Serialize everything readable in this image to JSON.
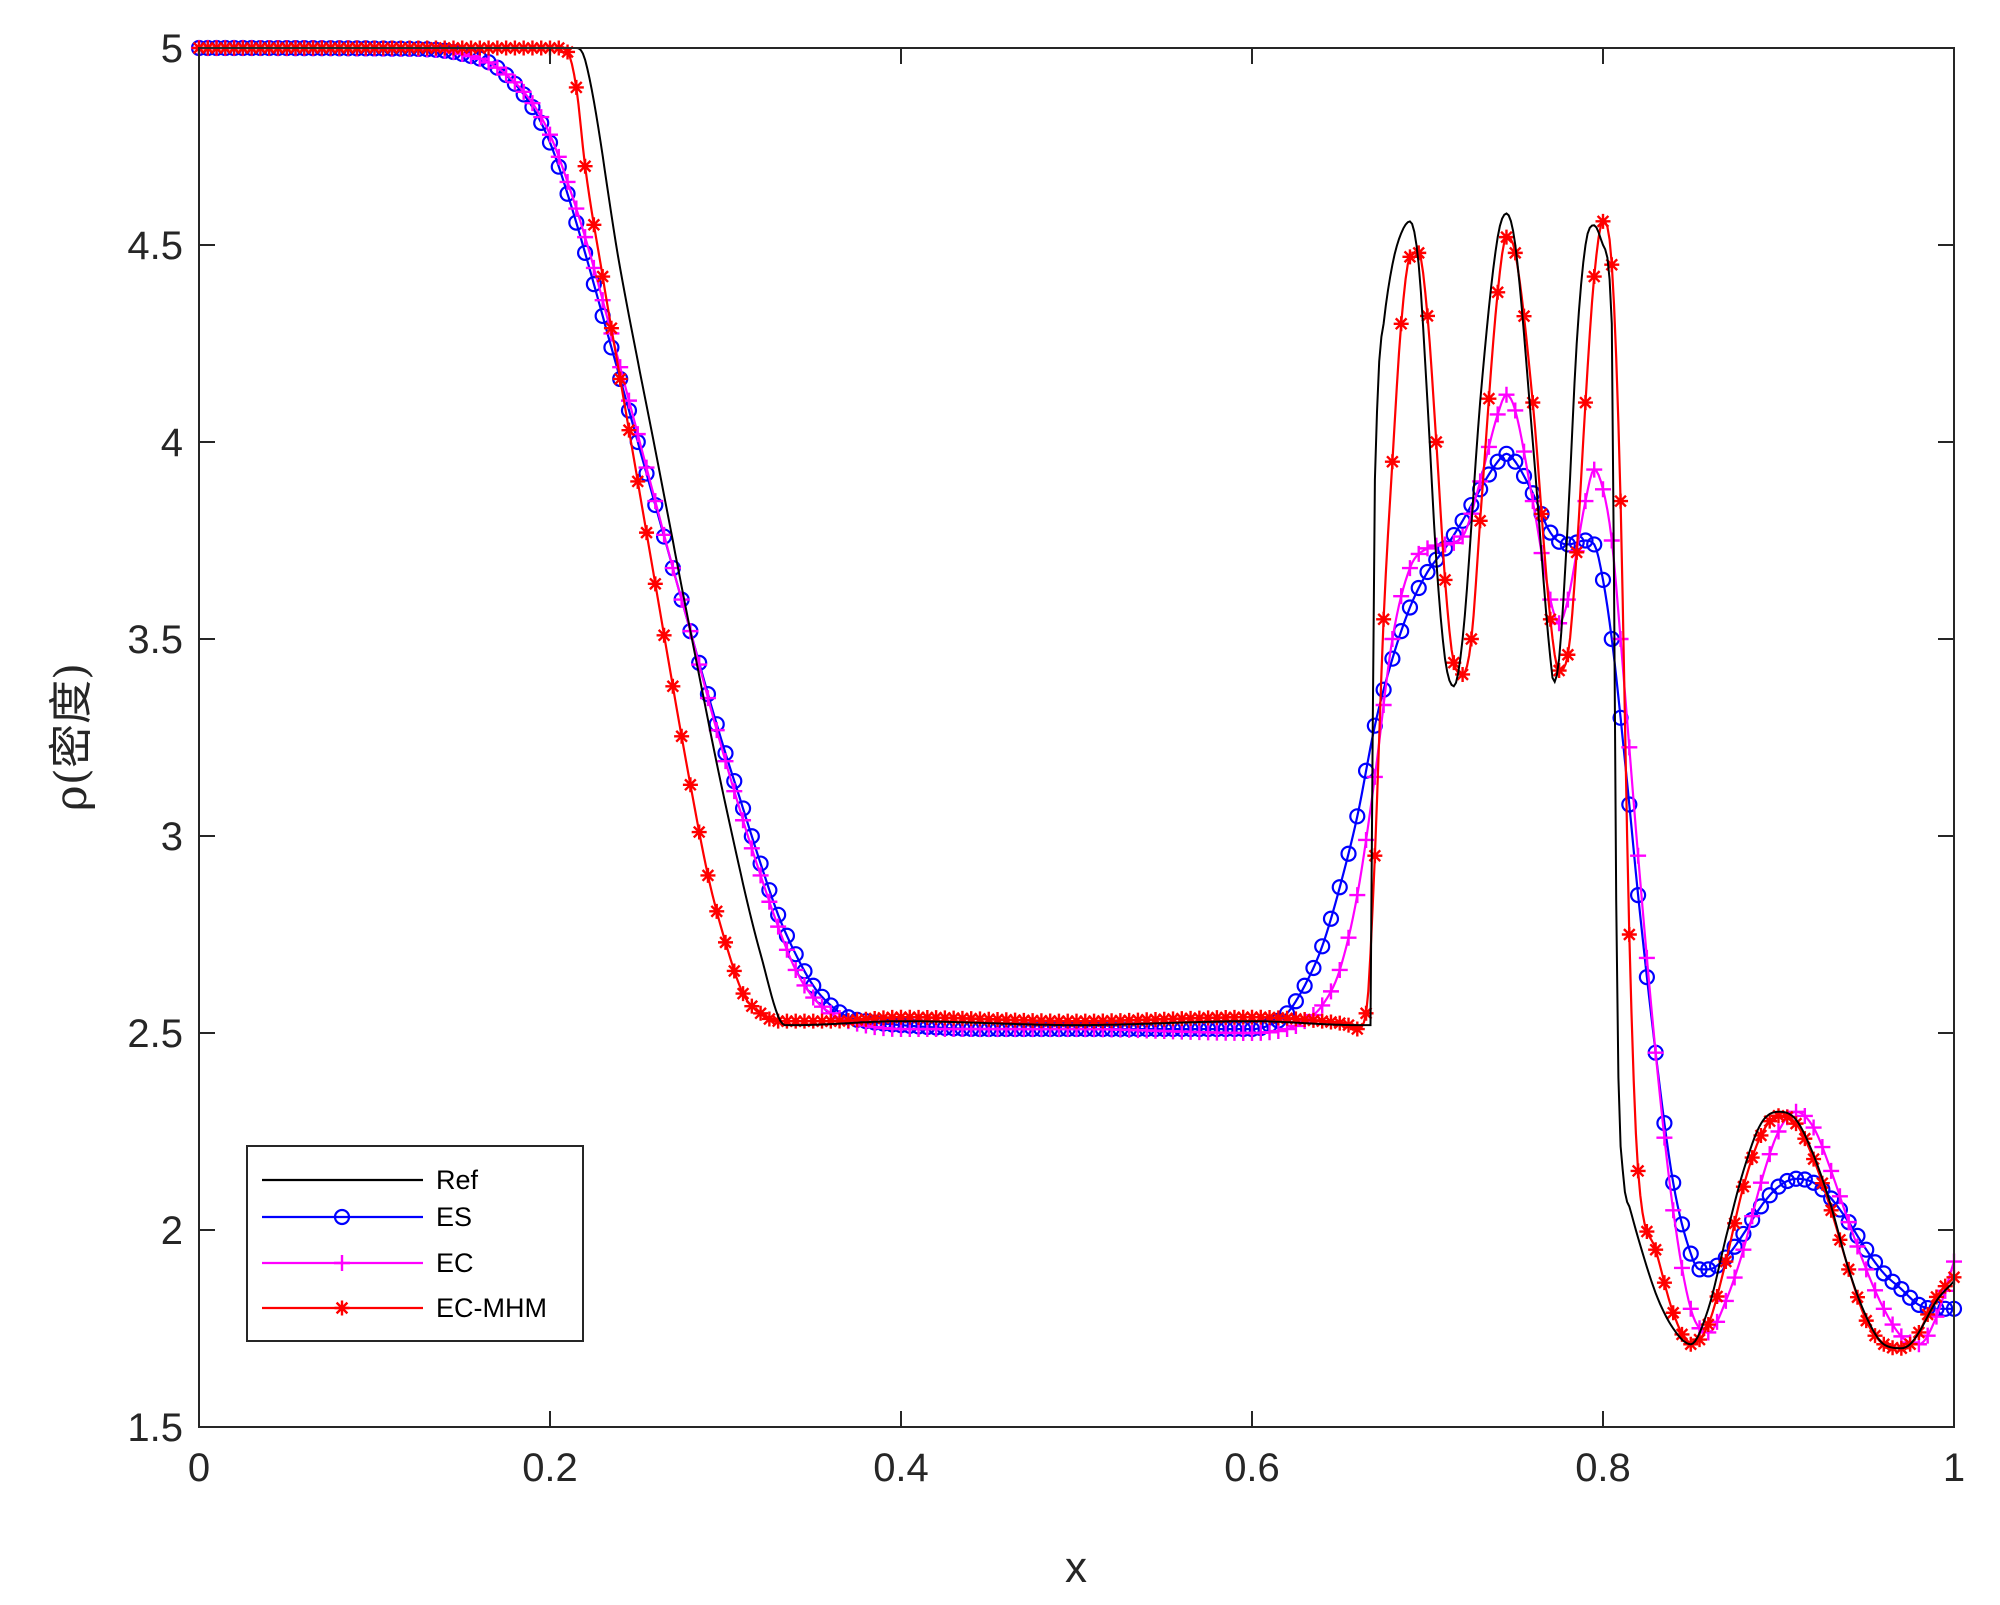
{
  "chart_data": {
    "type": "line",
    "title": "",
    "xlabel": "x",
    "ylabel": "ρ(密度)",
    "xlim": [
      0,
      1
    ],
    "ylim": [
      1.5,
      5
    ],
    "xticks": [
      0,
      0.2,
      0.4,
      0.6,
      0.8,
      1
    ],
    "xtick_labels": [
      "0",
      "0.2",
      "0.4",
      "0.6",
      "0.8",
      "1"
    ],
    "yticks": [
      1.5,
      2,
      2.5,
      3,
      3.5,
      4,
      4.5,
      5
    ],
    "ytick_labels": [
      "1.5",
      "2",
      "2.5",
      "3",
      "3.5",
      "4",
      "4.5",
      "5"
    ],
    "grid": false,
    "legend_position": "bottom-left",
    "series": [
      {
        "name": "Ref",
        "color": "#000000",
        "marker": "none",
        "x": [
          0,
          0.21,
          0.215,
          0.22,
          0.24,
          0.26,
          0.28,
          0.3,
          0.32,
          0.334,
          0.34,
          0.4,
          0.5,
          0.6,
          0.66,
          0.668,
          0.669,
          0.672,
          0.675,
          0.68,
          0.685,
          0.69,
          0.695,
          0.7,
          0.705,
          0.71,
          0.715,
          0.72,
          0.73,
          0.74,
          0.745,
          0.75,
          0.76,
          0.77,
          0.772,
          0.775,
          0.78,
          0.785,
          0.79,
          0.795,
          0.8,
          0.805,
          0.806,
          0.808,
          0.812,
          0.815,
          0.82,
          0.83,
          0.84,
          0.85,
          0.86,
          0.87,
          0.88,
          0.89,
          0.9,
          0.91,
          0.92,
          0.93,
          0.94,
          0.95,
          0.96,
          0.97,
          0.975,
          0.98,
          0.99,
          1.0
        ],
        "y": [
          5,
          5,
          5,
          4.97,
          4.44,
          3.98,
          3.52,
          3.08,
          2.7,
          2.52,
          2.52,
          2.53,
          2.52,
          2.53,
          2.52,
          2.52,
          3.5,
          4.15,
          4.3,
          4.45,
          4.53,
          4.56,
          4.45,
          4.1,
          3.7,
          3.45,
          3.38,
          3.5,
          4.1,
          4.52,
          4.58,
          4.5,
          4.0,
          3.45,
          3.39,
          3.45,
          3.8,
          4.25,
          4.5,
          4.55,
          4.5,
          4.3,
          3.8,
          2.6,
          2.12,
          2.06,
          1.98,
          1.84,
          1.75,
          1.71,
          1.8,
          1.98,
          2.15,
          2.27,
          2.3,
          2.28,
          2.19,
          2.06,
          1.9,
          1.78,
          1.71,
          1.7,
          1.71,
          1.74,
          1.82,
          1.87
        ]
      },
      {
        "name": "ES",
        "color": "#0000ff",
        "marker": "circle",
        "x": [
          0,
          0.12,
          0.15,
          0.17,
          0.19,
          0.2,
          0.21,
          0.22,
          0.23,
          0.24,
          0.25,
          0.26,
          0.27,
          0.28,
          0.29,
          0.3,
          0.31,
          0.32,
          0.33,
          0.34,
          0.35,
          0.36,
          0.37,
          0.38,
          0.4,
          0.45,
          0.5,
          0.55,
          0.6,
          0.61,
          0.62,
          0.63,
          0.64,
          0.65,
          0.66,
          0.67,
          0.68,
          0.69,
          0.7,
          0.71,
          0.72,
          0.73,
          0.74,
          0.745,
          0.75,
          0.76,
          0.77,
          0.78,
          0.79,
          0.795,
          0.8,
          0.805,
          0.81,
          0.815,
          0.82,
          0.83,
          0.84,
          0.85,
          0.855,
          0.86,
          0.87,
          0.88,
          0.89,
          0.9,
          0.91,
          0.92,
          0.93,
          0.94,
          0.95,
          0.96,
          0.97,
          0.98,
          0.99,
          1.0
        ],
        "y": [
          5,
          4.998,
          4.985,
          4.95,
          4.85,
          4.76,
          4.63,
          4.48,
          4.32,
          4.16,
          4.0,
          3.84,
          3.68,
          3.52,
          3.36,
          3.21,
          3.07,
          2.93,
          2.8,
          2.7,
          2.62,
          2.57,
          2.54,
          2.53,
          2.52,
          2.51,
          2.51,
          2.51,
          2.51,
          2.52,
          2.55,
          2.62,
          2.72,
          2.87,
          3.05,
          3.28,
          3.45,
          3.58,
          3.67,
          3.73,
          3.8,
          3.88,
          3.95,
          3.97,
          3.95,
          3.87,
          3.77,
          3.74,
          3.75,
          3.74,
          3.65,
          3.5,
          3.3,
          3.08,
          2.85,
          2.45,
          2.12,
          1.94,
          1.9,
          1.9,
          1.93,
          1.99,
          2.06,
          2.11,
          2.13,
          2.12,
          2.08,
          2.02,
          1.95,
          1.89,
          1.85,
          1.81,
          1.8,
          1.8
        ]
      },
      {
        "name": "EC",
        "color": "#ff00ff",
        "marker": "plus",
        "x": [
          0,
          0.12,
          0.15,
          0.17,
          0.19,
          0.2,
          0.21,
          0.22,
          0.23,
          0.24,
          0.25,
          0.26,
          0.27,
          0.28,
          0.29,
          0.3,
          0.31,
          0.32,
          0.33,
          0.34,
          0.35,
          0.36,
          0.37,
          0.4,
          0.5,
          0.6,
          0.62,
          0.63,
          0.64,
          0.65,
          0.66,
          0.67,
          0.68,
          0.69,
          0.7,
          0.71,
          0.72,
          0.73,
          0.74,
          0.745,
          0.75,
          0.76,
          0.77,
          0.775,
          0.78,
          0.79,
          0.795,
          0.8,
          0.805,
          0.81,
          0.82,
          0.83,
          0.84,
          0.85,
          0.86,
          0.87,
          0.88,
          0.89,
          0.9,
          0.91,
          0.92,
          0.93,
          0.94,
          0.95,
          0.96,
          0.97,
          0.98,
          0.99,
          1.0
        ],
        "y": [
          5,
          4.998,
          4.985,
          4.95,
          4.86,
          4.78,
          4.66,
          4.52,
          4.36,
          4.19,
          4.02,
          3.85,
          3.68,
          3.52,
          3.35,
          3.19,
          3.04,
          2.9,
          2.77,
          2.66,
          2.59,
          2.55,
          2.53,
          2.51,
          2.51,
          2.5,
          2.51,
          2.53,
          2.57,
          2.66,
          2.85,
          3.15,
          3.5,
          3.68,
          3.73,
          3.74,
          3.76,
          3.9,
          4.07,
          4.12,
          4.08,
          3.85,
          3.6,
          3.54,
          3.6,
          3.85,
          3.93,
          3.88,
          3.75,
          3.5,
          2.95,
          2.45,
          2.05,
          1.8,
          1.74,
          1.82,
          1.95,
          2.12,
          2.25,
          2.3,
          2.26,
          2.15,
          2.02,
          1.9,
          1.8,
          1.73,
          1.71,
          1.78,
          1.92
        ]
      },
      {
        "name": "EC-MHM",
        "color": "#ff0000",
        "marker": "asterisk",
        "x": [
          0,
          0.205,
          0.21,
          0.215,
          0.22,
          0.23,
          0.24,
          0.25,
          0.26,
          0.27,
          0.28,
          0.29,
          0.3,
          0.31,
          0.32,
          0.33,
          0.335,
          0.34,
          0.36,
          0.4,
          0.5,
          0.6,
          0.64,
          0.655,
          0.66,
          0.665,
          0.67,
          0.675,
          0.68,
          0.685,
          0.69,
          0.695,
          0.7,
          0.705,
          0.71,
          0.715,
          0.72,
          0.725,
          0.73,
          0.74,
          0.745,
          0.75,
          0.76,
          0.77,
          0.775,
          0.78,
          0.785,
          0.79,
          0.795,
          0.8,
          0.805,
          0.81,
          0.815,
          0.82,
          0.83,
          0.84,
          0.85,
          0.86,
          0.87,
          0.88,
          0.89,
          0.9,
          0.91,
          0.92,
          0.93,
          0.94,
          0.95,
          0.96,
          0.97,
          0.975,
          0.98,
          0.99,
          1.0
        ],
        "y": [
          5,
          5,
          4.99,
          4.9,
          4.7,
          4.42,
          4.16,
          3.9,
          3.64,
          3.38,
          3.13,
          2.9,
          2.73,
          2.6,
          2.55,
          2.53,
          2.53,
          2.53,
          2.53,
          2.54,
          2.53,
          2.54,
          2.53,
          2.52,
          2.51,
          2.55,
          2.95,
          3.55,
          3.95,
          4.3,
          4.47,
          4.48,
          4.32,
          4.0,
          3.65,
          3.44,
          3.41,
          3.5,
          3.8,
          4.38,
          4.52,
          4.48,
          4.1,
          3.55,
          3.42,
          3.46,
          3.72,
          4.1,
          4.42,
          4.56,
          4.45,
          3.85,
          2.75,
          2.15,
          1.95,
          1.79,
          1.71,
          1.76,
          1.92,
          2.11,
          2.24,
          2.29,
          2.27,
          2.18,
          2.05,
          1.9,
          1.77,
          1.71,
          1.7,
          1.71,
          1.74,
          1.83,
          1.88
        ]
      }
    ]
  }
}
